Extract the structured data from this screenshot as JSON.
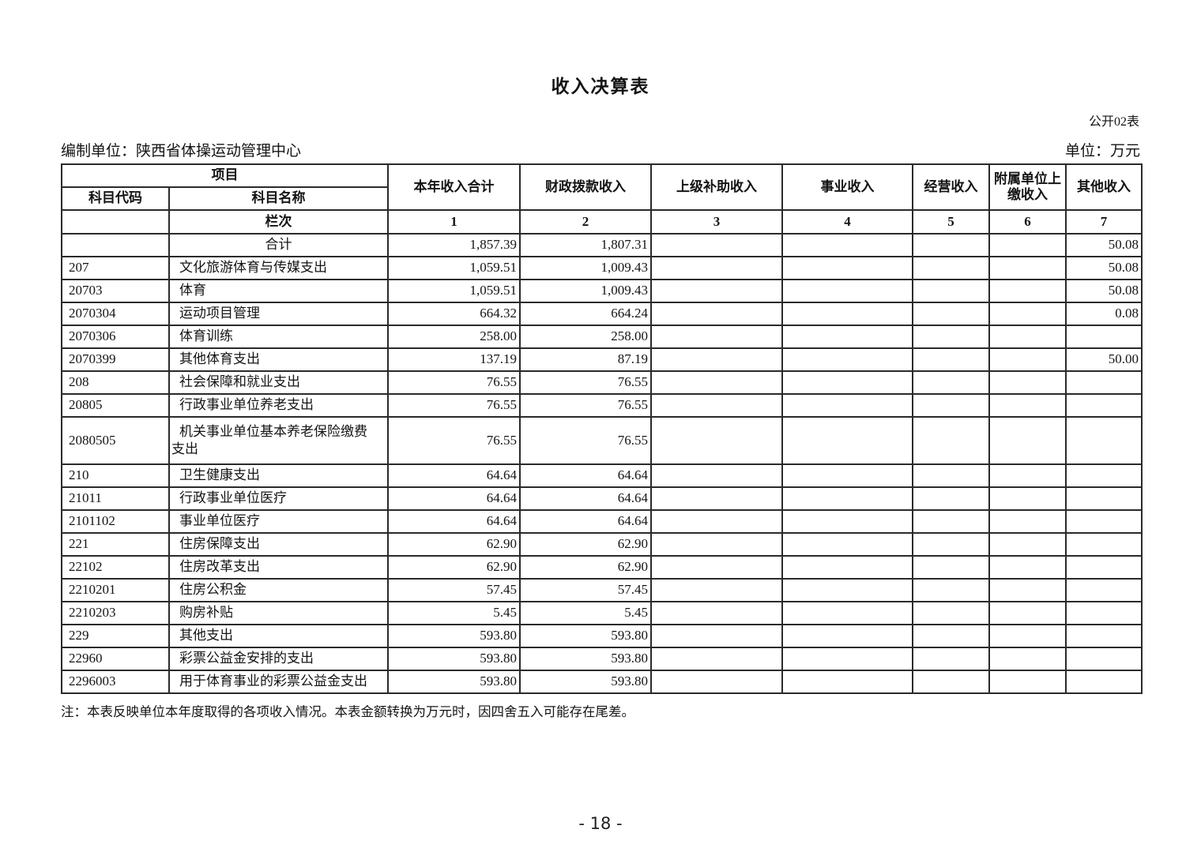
{
  "page": {
    "title": "收入决算表",
    "doc_code": "公开02表",
    "prepared_by": "编制单位：陕西省体操运动管理中心",
    "unit": "单位：万元",
    "note": "注：本表反映单位本年度取得的各项收入情况。本表金额转换为万元时，因四舍五入可能存在尾差。",
    "page_number": "- 18 -"
  },
  "table": {
    "header": {
      "project": "项目",
      "subject_code": "科目代码",
      "subject_name": "科目名称",
      "row_label": "栏次",
      "columns": [
        "本年收入合计",
        "财政拨款收入",
        "上级补助收入",
        "事业收入",
        "经营收入",
        "附属单位上缴收入",
        "其他收入"
      ],
      "column_numbers": [
        "1",
        "2",
        "3",
        "4",
        "5",
        "6",
        "7"
      ]
    },
    "rows": [
      {
        "code": "",
        "name": "合计",
        "center": true,
        "values": [
          "1,857.39",
          "1,807.31",
          "",
          "",
          "",
          "",
          "50.08"
        ]
      },
      {
        "code": "207",
        "name": "文化旅游体育与传媒支出",
        "values": [
          "1,059.51",
          "1,009.43",
          "",
          "",
          "",
          "",
          "50.08"
        ]
      },
      {
        "code": "20703",
        "name": "体育",
        "values": [
          "1,059.51",
          "1,009.43",
          "",
          "",
          "",
          "",
          "50.08"
        ]
      },
      {
        "code": "2070304",
        "name": "运动项目管理",
        "values": [
          "664.32",
          "664.24",
          "",
          "",
          "",
          "",
          "0.08"
        ]
      },
      {
        "code": "2070306",
        "name": "体育训练",
        "values": [
          "258.00",
          "258.00",
          "",
          "",
          "",
          "",
          ""
        ]
      },
      {
        "code": "2070399",
        "name": "其他体育支出",
        "values": [
          "137.19",
          "87.19",
          "",
          "",
          "",
          "",
          "50.00"
        ]
      },
      {
        "code": "208",
        "name": "社会保障和就业支出",
        "values": [
          "76.55",
          "76.55",
          "",
          "",
          "",
          "",
          ""
        ]
      },
      {
        "code": "20805",
        "name": "行政事业单位养老支出",
        "values": [
          "76.55",
          "76.55",
          "",
          "",
          "",
          "",
          ""
        ]
      },
      {
        "code": "2080505",
        "name": "机关事业单位基本养老保险缴费\n支出",
        "values": [
          "76.55",
          "76.55",
          "",
          "",
          "",
          "",
          ""
        ]
      },
      {
        "code": "210",
        "name": "卫生健康支出",
        "values": [
          "64.64",
          "64.64",
          "",
          "",
          "",
          "",
          ""
        ]
      },
      {
        "code": "21011",
        "name": "行政事业单位医疗",
        "values": [
          "64.64",
          "64.64",
          "",
          "",
          "",
          "",
          ""
        ]
      },
      {
        "code": "2101102",
        "name": "事业单位医疗",
        "values": [
          "64.64",
          "64.64",
          "",
          "",
          "",
          "",
          ""
        ]
      },
      {
        "code": "221",
        "name": "住房保障支出",
        "values": [
          "62.90",
          "62.90",
          "",
          "",
          "",
          "",
          ""
        ]
      },
      {
        "code": "22102",
        "name": "住房改革支出",
        "values": [
          "62.90",
          "62.90",
          "",
          "",
          "",
          "",
          ""
        ]
      },
      {
        "code": "2210201",
        "name": "住房公积金",
        "values": [
          "57.45",
          "57.45",
          "",
          "",
          "",
          "",
          ""
        ]
      },
      {
        "code": "2210203",
        "name": "购房补贴",
        "values": [
          "5.45",
          "5.45",
          "",
          "",
          "",
          "",
          ""
        ]
      },
      {
        "code": "229",
        "name": "其他支出",
        "values": [
          "593.80",
          "593.80",
          "",
          "",
          "",
          "",
          ""
        ]
      },
      {
        "code": "22960",
        "name": "彩票公益金安排的支出",
        "values": [
          "593.80",
          "593.80",
          "",
          "",
          "",
          "",
          ""
        ]
      },
      {
        "code": "2296003",
        "name": "用于体育事业的彩票公益金支出",
        "values": [
          "593.80",
          "593.80",
          "",
          "",
          "",
          "",
          ""
        ]
      }
    ]
  }
}
